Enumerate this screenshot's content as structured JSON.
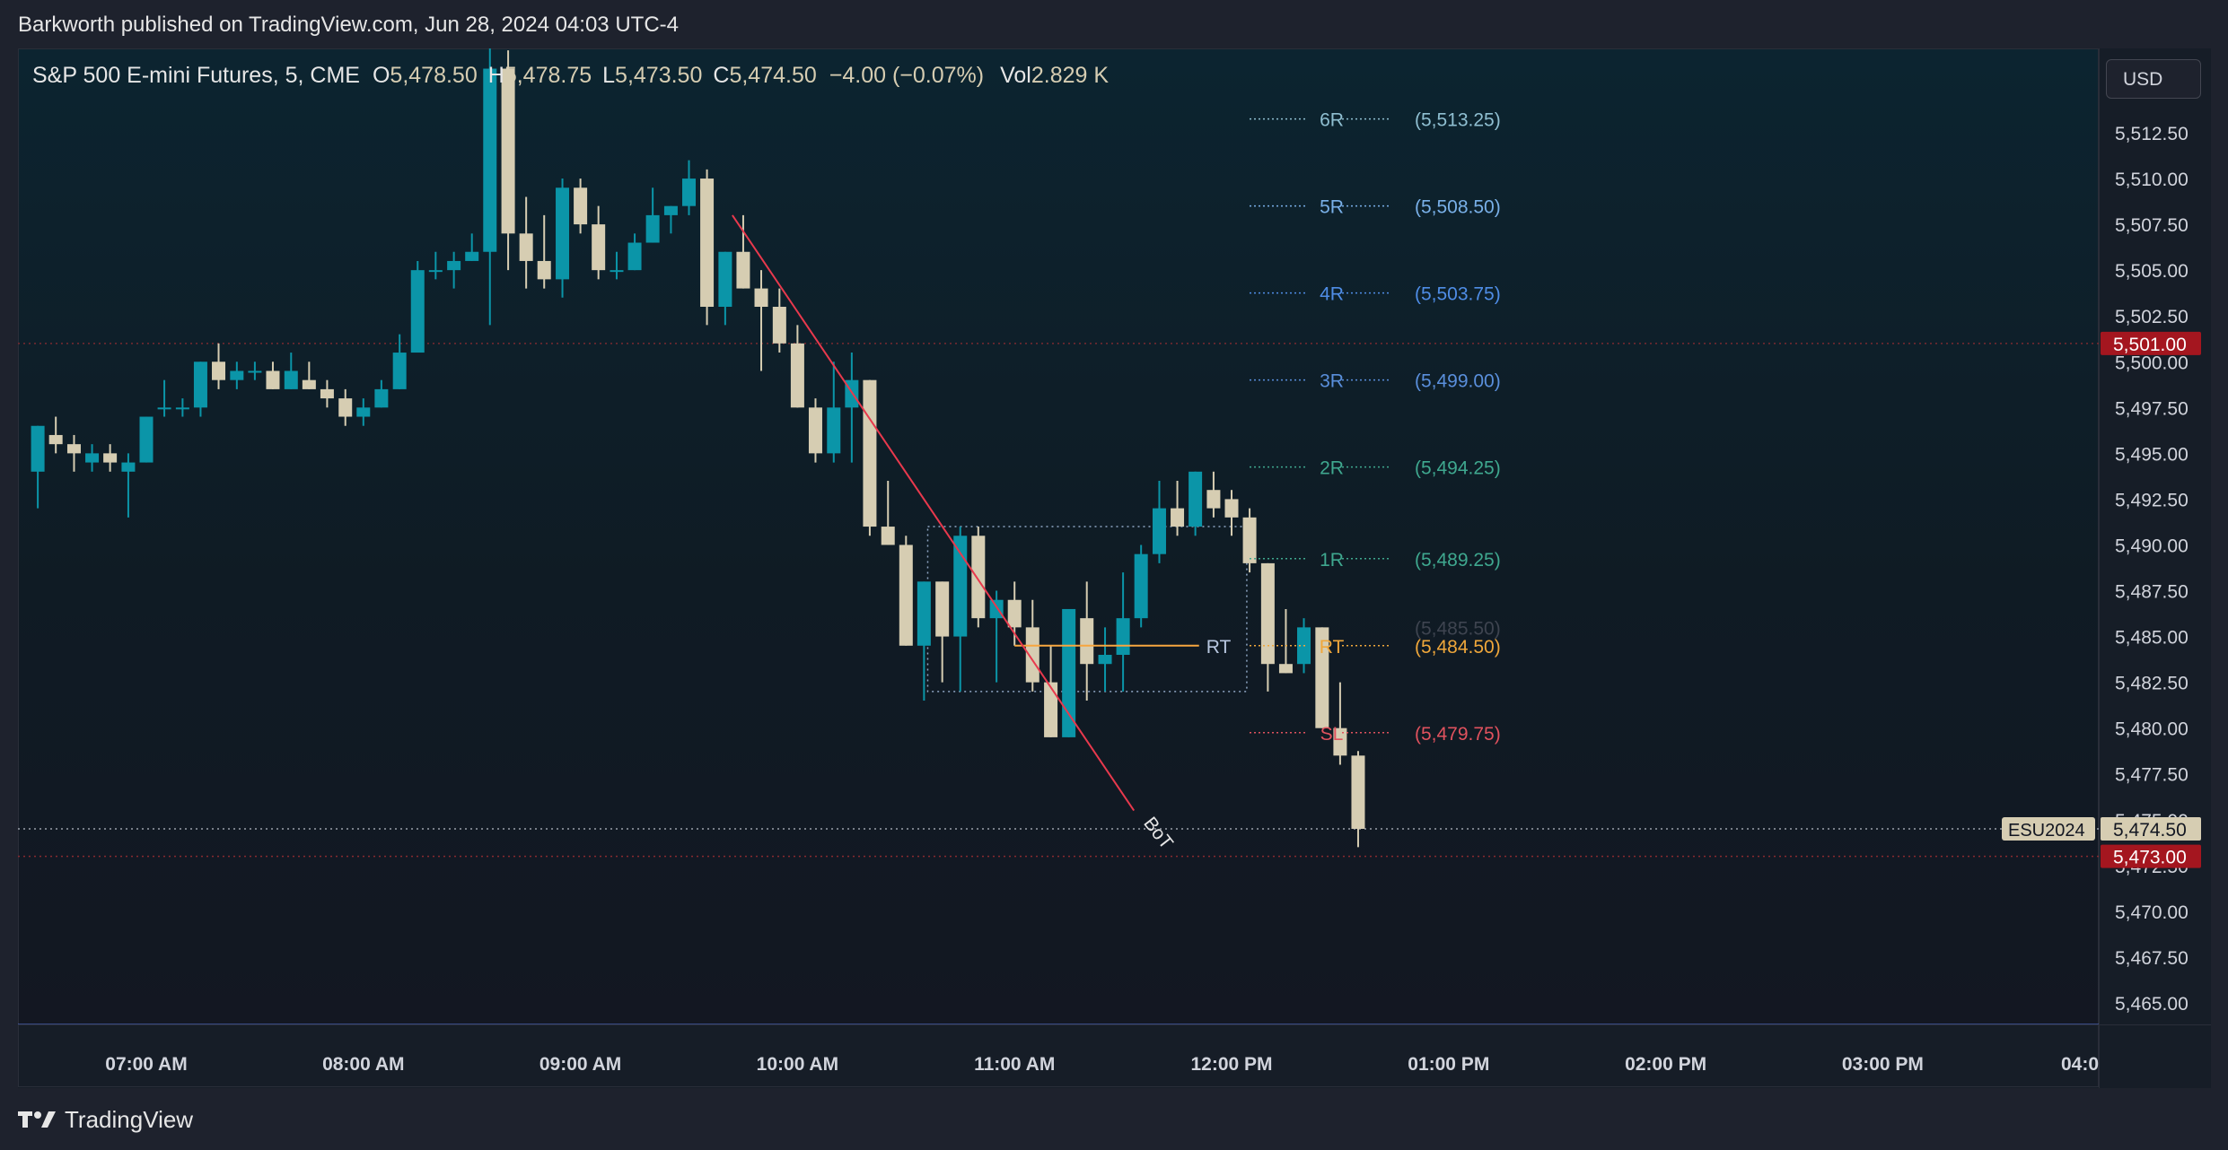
{
  "header": {
    "published": "Barkworth published on TradingView.com, Jun 28, 2024 04:03 UTC-4"
  },
  "legend": {
    "symbol": "S&P 500 E-mini Futures, 5, CME",
    "o_label": "O",
    "o_value": "5,478.50",
    "h_label": "H",
    "h_value": "5,478.75",
    "l_label": "L",
    "l_value": "5,473.50",
    "c_label": "C",
    "c_value": "5,474.50",
    "change": "−4.00 (−0.07%)",
    "vol_label": "Vol",
    "vol_value": "2.829 K"
  },
  "currency_button": "USD",
  "footer": {
    "brand": "TradingView"
  },
  "colors": {
    "up": "#0b95a8",
    "down": "#d6cdb2",
    "price_badge": "#a4161f",
    "last_badge": "#d6cdb2",
    "trend_line": "#e8394d",
    "rt_line": "#f7a63f",
    "bottom_line": "#5b7ce6"
  },
  "chart_data": {
    "type": "candlestick",
    "ylim": [
      5462.5,
      5515.0
    ],
    "y_ticks": [
      {
        "v": 5512.5,
        "label": "5,512.50"
      },
      {
        "v": 5510.0,
        "label": "5,510.00"
      },
      {
        "v": 5507.5,
        "label": "5,507.50"
      },
      {
        "v": 5505.0,
        "label": "5,505.00"
      },
      {
        "v": 5502.5,
        "label": "5,502.50"
      },
      {
        "v": 5500.0,
        "label": "5,500.00"
      },
      {
        "v": 5497.5,
        "label": "5,497.50"
      },
      {
        "v": 5495.0,
        "label": "5,495.00"
      },
      {
        "v": 5492.5,
        "label": "5,492.50"
      },
      {
        "v": 5490.0,
        "label": "5,490.00"
      },
      {
        "v": 5487.5,
        "label": "5,487.50"
      },
      {
        "v": 5485.0,
        "label": "5,485.00"
      },
      {
        "v": 5482.5,
        "label": "5,482.50"
      },
      {
        "v": 5480.0,
        "label": "5,480.00"
      },
      {
        "v": 5477.5,
        "label": "5,477.50"
      },
      {
        "v": 5475.0,
        "label": "5,475.00"
      },
      {
        "v": 5472.5,
        "label": "5,472.50"
      },
      {
        "v": 5470.0,
        "label": "5,470.00"
      },
      {
        "v": 5467.5,
        "label": "5,467.50"
      },
      {
        "v": 5465.0,
        "label": "5,465.00"
      }
    ],
    "x_time_ticks": [
      {
        "t": 7.0,
        "label": "07:00 AM"
      },
      {
        "t": 8.0,
        "label": "08:00 AM"
      },
      {
        "t": 9.0,
        "label": "09:00 AM"
      },
      {
        "t": 10.0,
        "label": "10:00 AM"
      },
      {
        "t": 11.0,
        "label": "11:00 AM"
      },
      {
        "t": 12.0,
        "label": "12:00 PM"
      },
      {
        "t": 13.0,
        "label": "01:00 PM"
      },
      {
        "t": 14.0,
        "label": "02:00 PM"
      },
      {
        "t": 15.0,
        "label": "03:00 PM"
      },
      {
        "t": 16.0,
        "label": "04:0"
      }
    ],
    "bar_interval_minutes": 5,
    "candles": [
      {
        "t": 6.5,
        "o": 5494.0,
        "h": 5496.5,
        "l": 5492.0,
        "c": 5496.5
      },
      {
        "t": 6.583,
        "o": 5496.0,
        "h": 5497.0,
        "l": 5495.0,
        "c": 5495.5
      },
      {
        "t": 6.667,
        "o": 5495.5,
        "h": 5496.0,
        "l": 5494.0,
        "c": 5495.0
      },
      {
        "t": 6.75,
        "o": 5494.5,
        "h": 5495.5,
        "l": 5494.0,
        "c": 5495.0
      },
      {
        "t": 6.833,
        "o": 5495.0,
        "h": 5495.5,
        "l": 5494.0,
        "c": 5494.5
      },
      {
        "t": 6.917,
        "o": 5494.0,
        "h": 5495.0,
        "l": 5491.5,
        "c": 5494.5
      },
      {
        "t": 7.0,
        "o": 5494.5,
        "h": 5497.0,
        "l": 5494.5,
        "c": 5497.0
      },
      {
        "t": 7.083,
        "o": 5497.5,
        "h": 5499.0,
        "l": 5497.0,
        "c": 5497.5
      },
      {
        "t": 7.167,
        "o": 5497.5,
        "h": 5498.0,
        "l": 5497.0,
        "c": 5497.5
      },
      {
        "t": 7.25,
        "o": 5497.5,
        "h": 5500.0,
        "l": 5497.0,
        "c": 5500.0
      },
      {
        "t": 7.333,
        "o": 5500.0,
        "h": 5501.0,
        "l": 5498.5,
        "c": 5499.0
      },
      {
        "t": 7.417,
        "o": 5499.0,
        "h": 5500.0,
        "l": 5498.5,
        "c": 5499.5
      },
      {
        "t": 7.5,
        "o": 5499.5,
        "h": 5500.0,
        "l": 5499.0,
        "c": 5499.5
      },
      {
        "t": 7.583,
        "o": 5499.5,
        "h": 5500.0,
        "l": 5498.5,
        "c": 5498.5
      },
      {
        "t": 7.667,
        "o": 5498.5,
        "h": 5500.5,
        "l": 5498.5,
        "c": 5499.5
      },
      {
        "t": 7.75,
        "o": 5499.0,
        "h": 5500.0,
        "l": 5498.5,
        "c": 5498.5
      },
      {
        "t": 7.833,
        "o": 5498.5,
        "h": 5499.0,
        "l": 5497.5,
        "c": 5498.0
      },
      {
        "t": 7.917,
        "o": 5498.0,
        "h": 5498.5,
        "l": 5496.5,
        "c": 5497.0
      },
      {
        "t": 8.0,
        "o": 5497.0,
        "h": 5498.0,
        "l": 5496.5,
        "c": 5497.5
      },
      {
        "t": 8.083,
        "o": 5497.5,
        "h": 5499.0,
        "l": 5497.5,
        "c": 5498.5
      },
      {
        "t": 8.167,
        "o": 5498.5,
        "h": 5501.5,
        "l": 5498.5,
        "c": 5500.5
      },
      {
        "t": 8.25,
        "o": 5500.5,
        "h": 5505.5,
        "l": 5500.5,
        "c": 5505.0
      },
      {
        "t": 8.333,
        "o": 5505.0,
        "h": 5506.0,
        "l": 5504.5,
        "c": 5505.0
      },
      {
        "t": 8.417,
        "o": 5505.0,
        "h": 5506.0,
        "l": 5504.0,
        "c": 5505.5
      },
      {
        "t": 8.5,
        "o": 5505.5,
        "h": 5507.0,
        "l": 5505.5,
        "c": 5506.0
      },
      {
        "t": 8.583,
        "o": 5506.0,
        "h": 5518.0,
        "l": 5502.0,
        "c": 5516.0
      },
      {
        "t": 8.667,
        "o": 5516.0,
        "h": 5517.0,
        "l": 5505.0,
        "c": 5507.0
      },
      {
        "t": 8.75,
        "o": 5507.0,
        "h": 5509.0,
        "l": 5504.0,
        "c": 5505.5
      },
      {
        "t": 8.833,
        "o": 5505.5,
        "h": 5508.0,
        "l": 5504.0,
        "c": 5504.5
      },
      {
        "t": 8.917,
        "o": 5504.5,
        "h": 5510.0,
        "l": 5503.5,
        "c": 5509.5
      },
      {
        "t": 9.0,
        "o": 5509.5,
        "h": 5510.0,
        "l": 5507.0,
        "c": 5507.5
      },
      {
        "t": 9.083,
        "o": 5507.5,
        "h": 5508.5,
        "l": 5504.5,
        "c": 5505.0
      },
      {
        "t": 9.167,
        "o": 5505.0,
        "h": 5506.0,
        "l": 5504.5,
        "c": 5505.0
      },
      {
        "t": 9.25,
        "o": 5505.0,
        "h": 5507.0,
        "l": 5505.0,
        "c": 5506.5
      },
      {
        "t": 9.333,
        "o": 5506.5,
        "h": 5509.5,
        "l": 5506.5,
        "c": 5508.0
      },
      {
        "t": 9.417,
        "o": 5508.0,
        "h": 5508.5,
        "l": 5507.0,
        "c": 5508.5
      },
      {
        "t": 9.5,
        "o": 5508.5,
        "h": 5511.0,
        "l": 5508.0,
        "c": 5510.0
      },
      {
        "t": 9.583,
        "o": 5510.0,
        "h": 5510.5,
        "l": 5502.0,
        "c": 5503.0
      },
      {
        "t": 9.667,
        "o": 5503.0,
        "h": 5506.0,
        "l": 5502.0,
        "c": 5506.0
      },
      {
        "t": 9.75,
        "o": 5506.0,
        "h": 5508.0,
        "l": 5504.0,
        "c": 5504.0
      },
      {
        "t": 9.833,
        "o": 5504.0,
        "h": 5505.0,
        "l": 5499.5,
        "c": 5503.0
      },
      {
        "t": 9.917,
        "o": 5503.0,
        "h": 5504.0,
        "l": 5500.5,
        "c": 5501.0
      },
      {
        "t": 10.0,
        "o": 5501.0,
        "h": 5502.0,
        "l": 5497.5,
        "c": 5497.5
      },
      {
        "t": 10.083,
        "o": 5497.5,
        "h": 5498.0,
        "l": 5494.5,
        "c": 5495.0
      },
      {
        "t": 10.167,
        "o": 5495.0,
        "h": 5500.0,
        "l": 5494.5,
        "c": 5497.5
      },
      {
        "t": 10.25,
        "o": 5497.5,
        "h": 5500.5,
        "l": 5494.5,
        "c": 5499.0
      },
      {
        "t": 10.333,
        "o": 5499.0,
        "h": 5499.0,
        "l": 5490.5,
        "c": 5491.0
      },
      {
        "t": 10.417,
        "o": 5491.0,
        "h": 5493.5,
        "l": 5490.0,
        "c": 5490.0
      },
      {
        "t": 10.5,
        "o": 5490.0,
        "h": 5490.5,
        "l": 5484.5,
        "c": 5484.5
      },
      {
        "t": 10.583,
        "o": 5484.5,
        "h": 5488.0,
        "l": 5481.5,
        "c": 5488.0
      },
      {
        "t": 10.667,
        "o": 5488.0,
        "h": 5488.0,
        "l": 5482.5,
        "c": 5485.0
      },
      {
        "t": 10.75,
        "o": 5485.0,
        "h": 5491.0,
        "l": 5482.0,
        "c": 5490.5
      },
      {
        "t": 10.833,
        "o": 5490.5,
        "h": 5491.0,
        "l": 5485.5,
        "c": 5486.0
      },
      {
        "t": 10.917,
        "o": 5486.0,
        "h": 5487.5,
        "l": 5482.5,
        "c": 5487.0
      },
      {
        "t": 11.0,
        "o": 5487.0,
        "h": 5488.0,
        "l": 5484.5,
        "c": 5485.5
      },
      {
        "t": 11.083,
        "o": 5485.5,
        "h": 5487.0,
        "l": 5482.0,
        "c": 5482.5
      },
      {
        "t": 11.167,
        "o": 5482.5,
        "h": 5484.5,
        "l": 5479.5,
        "c": 5479.5
      },
      {
        "t": 11.25,
        "o": 5479.5,
        "h": 5486.5,
        "l": 5479.5,
        "c": 5486.5
      },
      {
        "t": 11.333,
        "o": 5486.0,
        "h": 5488.0,
        "l": 5481.5,
        "c": 5483.5
      },
      {
        "t": 11.417,
        "o": 5483.5,
        "h": 5485.5,
        "l": 5482.0,
        "c": 5484.0
      },
      {
        "t": 11.5,
        "o": 5484.0,
        "h": 5488.5,
        "l": 5482.0,
        "c": 5486.0
      },
      {
        "t": 11.583,
        "o": 5486.0,
        "h": 5490.0,
        "l": 5485.5,
        "c": 5489.5
      },
      {
        "t": 11.667,
        "o": 5489.5,
        "h": 5493.5,
        "l": 5489.0,
        "c": 5492.0
      },
      {
        "t": 11.75,
        "o": 5492.0,
        "h": 5493.5,
        "l": 5490.5,
        "c": 5491.0
      },
      {
        "t": 11.833,
        "o": 5491.0,
        "h": 5494.0,
        "l": 5490.5,
        "c": 5494.0
      },
      {
        "t": 11.917,
        "o": 5493.0,
        "h": 5494.0,
        "l": 5491.5,
        "c": 5492.0
      },
      {
        "t": 12.0,
        "o": 5492.5,
        "h": 5493.0,
        "l": 5490.5,
        "c": 5491.5
      },
      {
        "t": 12.083,
        "o": 5491.5,
        "h": 5492.0,
        "l": 5488.5,
        "c": 5489.0
      },
      {
        "t": 12.167,
        "o": 5489.0,
        "h": 5489.0,
        "l": 5482.0,
        "c": 5483.5
      },
      {
        "t": 12.25,
        "o": 5483.5,
        "h": 5486.5,
        "l": 5483.0,
        "c": 5483.0
      },
      {
        "t": 12.333,
        "o": 5483.5,
        "h": 5486.0,
        "l": 5483.0,
        "c": 5485.5
      },
      {
        "t": 12.417,
        "o": 5485.5,
        "h": 5485.5,
        "l": 5480.0,
        "c": 5480.0
      },
      {
        "t": 12.5,
        "o": 5480.0,
        "h": 5482.5,
        "l": 5478.0,
        "c": 5478.5
      },
      {
        "t": 12.583,
        "o": 5478.5,
        "h": 5478.75,
        "l": 5473.5,
        "c": 5474.5
      }
    ],
    "levels": [
      {
        "label": "6R",
        "value_label": "(5,513.25)",
        "value": 5513.25,
        "color": "#8fbfd1"
      },
      {
        "label": "5R",
        "value_label": "(5,508.50)",
        "value": 5508.5,
        "color": "#79b0e8"
      },
      {
        "label": "4R",
        "value_label": "(5,503.75)",
        "value": 5503.75,
        "color": "#4f8de6"
      },
      {
        "label": "3R",
        "value_label": "(5,499.00)",
        "value": 5499.0,
        "color": "#5a8fdc"
      },
      {
        "label": "2R",
        "value_label": "(5,494.25)",
        "value": 5494.25,
        "color": "#3fa88f"
      },
      {
        "label": "1R",
        "value_label": "(5,489.25)",
        "value": 5489.25,
        "color": "#3fa88f"
      },
      {
        "label": "",
        "value_label": "(5,485.50)",
        "value": 5485.5,
        "color": "#3e4450"
      },
      {
        "label": "RT",
        "value_label": "(5,484.50)",
        "value": 5484.5,
        "color": "#f0a73b"
      },
      {
        "label": "SL",
        "value_label": "(5,479.75)",
        "value": 5479.75,
        "color": "#e0525e"
      }
    ],
    "annotations": {
      "trend_line": {
        "t1": 9.7,
        "y1": 5508.0,
        "t2": 11.55,
        "y2": 5475.5,
        "label": "BoT"
      },
      "rt_hline": {
        "t1": 11.0,
        "t2": 11.85,
        "value": 5484.5,
        "label": "RT"
      },
      "box": {
        "t1": 10.6,
        "t2": 12.07,
        "y_top": 5491.0,
        "y_bottom": 5482.0
      },
      "dotted_level_red": 5501.0,
      "dotted_level_white": 5474.5,
      "dotted_level_red_low": 5473.0,
      "bottom_line_value": 5463.8
    },
    "price_badges": [
      {
        "value": 5501.0,
        "label": "5,501.00",
        "kind": "red"
      },
      {
        "value": 5474.5,
        "label": "5,474.50",
        "kind": "last",
        "tag": "ESU2024"
      },
      {
        "value": 5473.0,
        "label": "5,473.00",
        "kind": "red"
      }
    ]
  }
}
